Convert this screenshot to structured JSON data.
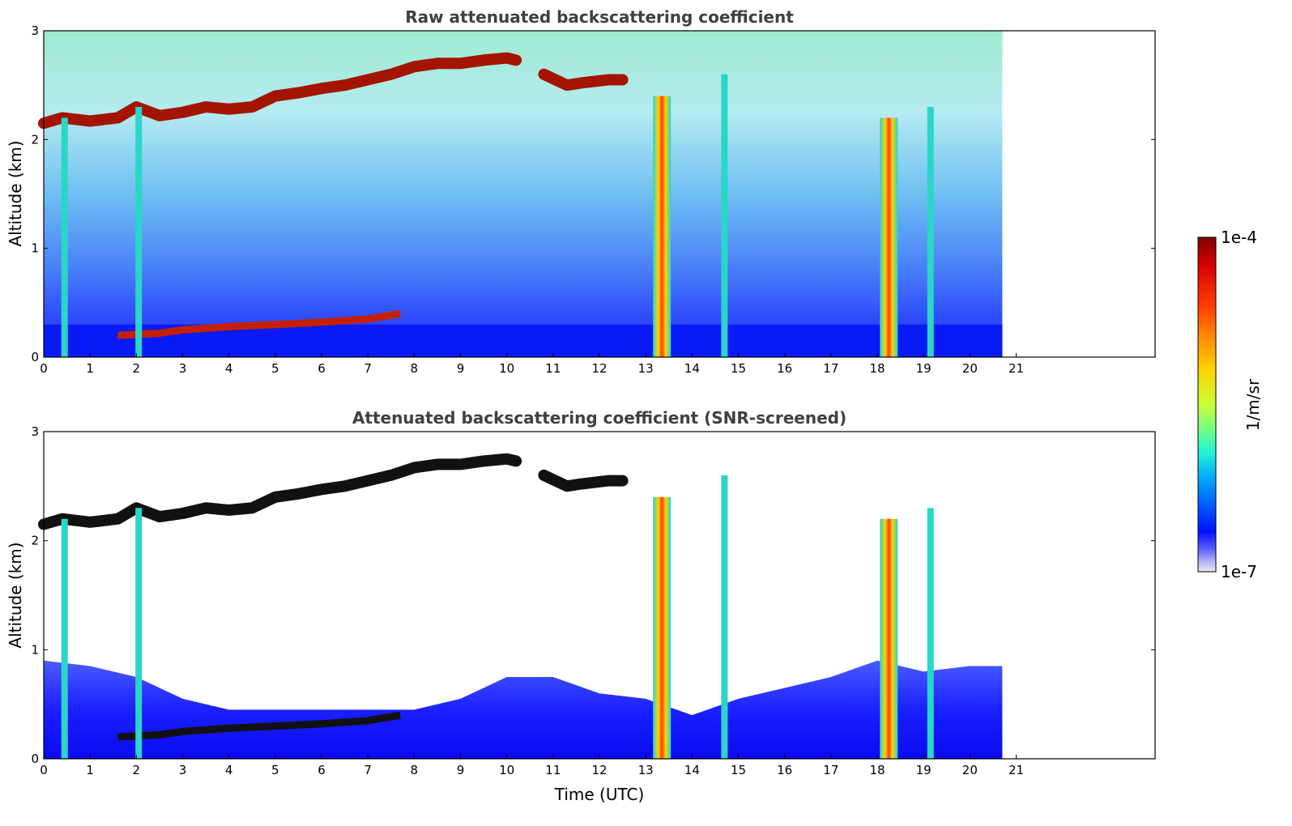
{
  "chart_data": [
    {
      "type": "heatmap",
      "title": "Raw attenuated backscattering coefficient",
      "xlabel": "",
      "ylabel": "Altitude (km)",
      "xlim": [
        0,
        24
      ],
      "ylim": [
        0,
        3
      ],
      "x_ticks": [
        "0",
        "1",
        "2",
        "3",
        "4",
        "5",
        "6",
        "7",
        "8",
        "9",
        "10",
        "11",
        "12",
        "13",
        "14",
        "15",
        "16",
        "17",
        "18",
        "19",
        "20",
        "21"
      ],
      "y_ticks": [
        "0",
        "1",
        "2",
        "3"
      ],
      "data_end_time": 20.7,
      "grid": false,
      "features": [
        {
          "kind": "cloud_layer",
          "x": [
            0.0,
            0.4,
            1.0,
            1.6,
            2.0,
            2.5,
            3.0,
            3.5,
            4.0,
            4.5,
            5.0,
            5.5,
            6.0,
            6.5,
            7.0,
            7.5,
            8.0,
            8.5,
            9.0,
            9.5,
            10.0,
            10.2
          ],
          "y": [
            2.15,
            2.2,
            2.17,
            2.2,
            2.3,
            2.22,
            2.25,
            2.3,
            2.28,
            2.3,
            2.4,
            2.43,
            2.47,
            2.5,
            2.55,
            2.6,
            2.67,
            2.7,
            2.7,
            2.73,
            2.75,
            2.73
          ]
        },
        {
          "kind": "cloud_layer",
          "x": [
            10.8,
            11.3,
            11.6,
            12.2,
            12.5
          ],
          "y": [
            2.6,
            2.5,
            2.52,
            2.55,
            2.55
          ]
        },
        {
          "kind": "aerosol_layer",
          "x": [
            1.6,
            2.5,
            3.0,
            4.0,
            5.0,
            6.0,
            7.0,
            7.7
          ],
          "y": [
            0.2,
            0.22,
            0.25,
            0.28,
            0.3,
            0.32,
            0.35,
            0.4
          ]
        },
        {
          "kind": "precipitation",
          "x": [
            0.45,
            2.05,
            13.35,
            14.7,
            18.25,
            19.15
          ],
          "top": [
            2.2,
            2.3,
            2.4,
            2.6,
            2.2,
            2.3
          ]
        }
      ]
    },
    {
      "type": "heatmap",
      "title": "Attenuated backscattering coefficient (SNR-screened)",
      "xlabel": "Time (UTC)",
      "ylabel": "Altitude (km)",
      "xlim": [
        0,
        24
      ],
      "ylim": [
        0,
        3
      ],
      "x_ticks": [
        "0",
        "1",
        "2",
        "3",
        "4",
        "5",
        "6",
        "7",
        "8",
        "9",
        "10",
        "11",
        "12",
        "13",
        "14",
        "15",
        "16",
        "17",
        "18",
        "19",
        "20",
        "21"
      ],
      "y_ticks": [
        "0",
        "1",
        "2",
        "3"
      ],
      "data_end_time": 20.7,
      "grid": false,
      "boundary_layer_top": {
        "x": [
          0,
          1,
          2,
          3,
          4,
          5,
          6,
          7,
          8,
          9,
          10,
          11,
          12,
          13,
          14,
          15,
          16,
          17,
          18,
          19,
          20,
          20.7
        ],
        "y": [
          0.9,
          0.85,
          0.75,
          0.55,
          0.45,
          0.45,
          0.45,
          0.45,
          0.45,
          0.55,
          0.75,
          0.75,
          0.6,
          0.55,
          0.4,
          0.55,
          0.65,
          0.75,
          0.9,
          0.8,
          0.85,
          0.85
        ]
      }
    }
  ],
  "colorbar": {
    "label": "1/m/sr",
    "max_label": "1e-4",
    "min_label": "1e-7",
    "scale": "log",
    "colormap": "jet",
    "colors": [
      "#7f0000",
      "#d40000",
      "#ff3a00",
      "#ff8c00",
      "#ffd400",
      "#c8ff36",
      "#6aff8d",
      "#1df0d9",
      "#00a8ff",
      "#005cff",
      "#0010ff",
      "#5a5aff",
      "#b4b4f5",
      "#e8e8fb"
    ]
  }
}
